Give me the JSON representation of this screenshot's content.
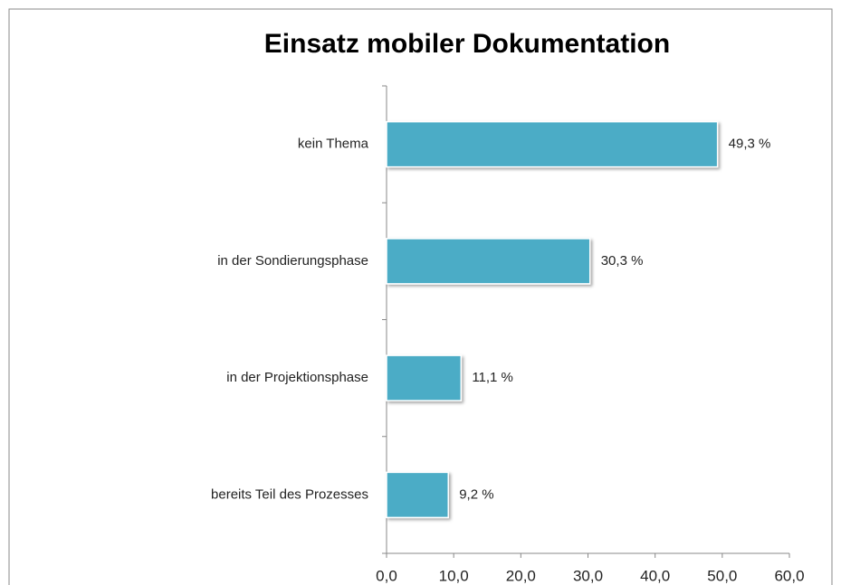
{
  "chart_data": {
    "type": "bar",
    "orientation": "horizontal",
    "title": "Einsatz mobiler Dokumentation",
    "categories": [
      "kein Thema",
      "in der Sondierungsphase",
      "in der Projektionsphase",
      "bereits Teil des Prozesses"
    ],
    "values": [
      49.3,
      30.3,
      11.1,
      9.2
    ],
    "value_labels": [
      "49,3 %",
      "30,3 %",
      "11,1 %",
      "9,2 %"
    ],
    "color": "#4bacc6",
    "xlim": [
      0,
      60
    ],
    "xticks": [
      {
        "value": 0,
        "label": "0,0"
      },
      {
        "value": 10,
        "label": "10,0"
      },
      {
        "value": 20,
        "label": "20,0"
      },
      {
        "value": 30,
        "label": "30,0"
      },
      {
        "value": 40,
        "label": "40,0"
      },
      {
        "value": 50,
        "label": "50,0"
      },
      {
        "value": 60,
        "label": "60,0"
      }
    ],
    "grid": false
  }
}
